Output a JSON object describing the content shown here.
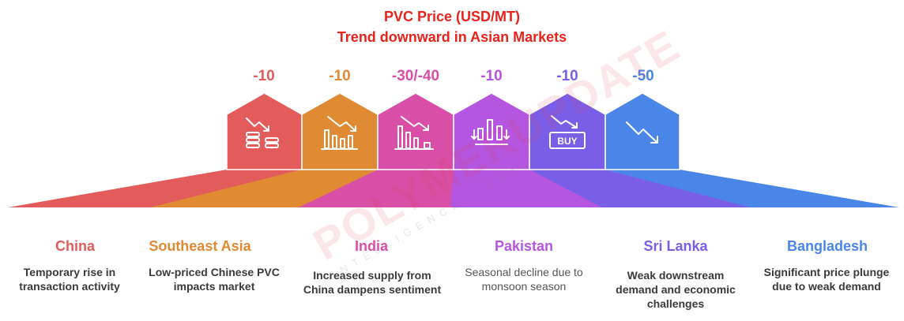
{
  "title": {
    "line1": "PVC Price (USD/MT)",
    "line2": "Trend downward in Asian Markets"
  },
  "colors": {
    "title": "#e8231c",
    "china": "#e35b5b",
    "southeast_asia": "#e08a33",
    "india": "#d94fa8",
    "pakistan": "#b556e0",
    "sri_lanka": "#7b5ee8",
    "bangladesh": "#4a86e8"
  },
  "watermark": {
    "brand": "POLYMERUPDATE",
    "sub": "INTELLIGENCE · ANALYTICS"
  },
  "markets": [
    {
      "value": "-10",
      "name": "China",
      "description": "Temporary rise in transaction activity",
      "icon": "coins-down-icon"
    },
    {
      "value": "-10",
      "name": "Southeast Asia",
      "description": "Low-priced Chinese PVC impacts market",
      "icon": "bar-chart-down-icon"
    },
    {
      "value": "-30/-40",
      "name": "India",
      "description": "Increased supply from China dampens sentiment",
      "icon": "bar-chart-decline-icon"
    },
    {
      "value": "-10",
      "name": "Pakistan",
      "description": "Seasonal decline due to monsoon season",
      "icon": "fluctuation-chart-icon"
    },
    {
      "value": "-10",
      "name": "Sri Lanka",
      "description": "Weak downstream demand and economic challenges",
      "icon": "buy-down-icon"
    },
    {
      "value": "-50",
      "name": "Bangladesh",
      "description": "Significant price plunge due to weak demand",
      "icon": "trend-down-icon"
    }
  ],
  "buy_label": "BUY"
}
